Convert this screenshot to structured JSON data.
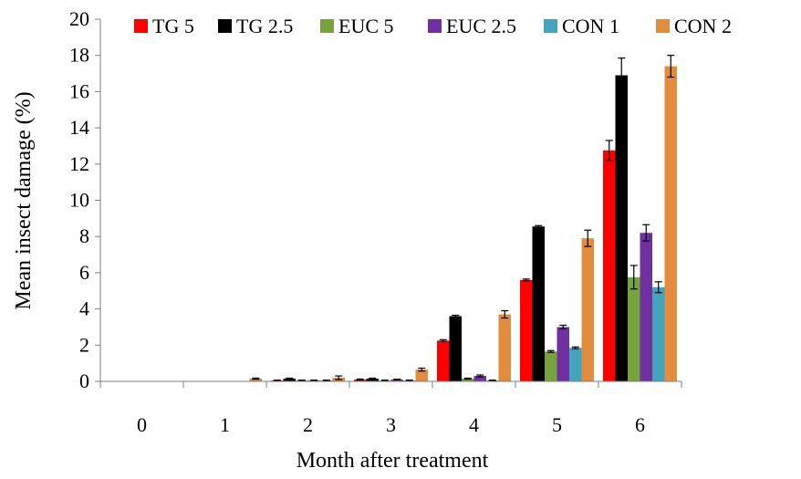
{
  "chart_data": {
    "type": "bar",
    "title": "",
    "xlabel": "Month after treatment",
    "ylabel": "Mean insect damage (%)",
    "ylim": [
      0,
      20
    ],
    "yticks": [
      0,
      2,
      4,
      6,
      8,
      10,
      12,
      14,
      16,
      18,
      20
    ],
    "grid": false,
    "legend_position": "top",
    "categories": [
      "0",
      "1",
      "2",
      "3",
      "4",
      "5",
      "6"
    ],
    "series": [
      {
        "name": "TG 5",
        "color": "#ff0000",
        "values": [
          0,
          0,
          0.05,
          0.1,
          2.25,
          5.6,
          12.75
        ],
        "errors": [
          0,
          0,
          0.02,
          0.03,
          0.05,
          0.05,
          0.55
        ]
      },
      {
        "name": "TG 2.5",
        "color": "#000000",
        "values": [
          0,
          0,
          0.15,
          0.15,
          3.6,
          8.55,
          16.9
        ],
        "errors": [
          0,
          0,
          0.03,
          0.03,
          0.05,
          0.05,
          0.95
        ]
      },
      {
        "name": "EUC 5",
        "color": "#77a33c",
        "values": [
          0,
          0,
          0.05,
          0.05,
          0.15,
          1.65,
          5.75
        ],
        "errors": [
          0,
          0,
          0.02,
          0.02,
          0.03,
          0.05,
          0.65
        ]
      },
      {
        "name": "EUC 2.5",
        "color": "#7030a0",
        "values": [
          0,
          0,
          0.05,
          0.1,
          0.3,
          3.0,
          8.2
        ],
        "errors": [
          0,
          0,
          0.02,
          0.02,
          0.05,
          0.1,
          0.45
        ]
      },
      {
        "name": "CON 1",
        "color": "#44a4bd",
        "values": [
          0,
          0,
          0.05,
          0.05,
          0.05,
          1.85,
          5.2
        ],
        "errors": [
          0,
          0,
          0.02,
          0.02,
          0.02,
          0.05,
          0.3
        ]
      },
      {
        "name": "CON 2",
        "color": "#e28c3e",
        "values": [
          0,
          0.15,
          0.2,
          0.65,
          3.7,
          7.9,
          17.4
        ],
        "errors": [
          0,
          0.03,
          0.1,
          0.08,
          0.2,
          0.45,
          0.6
        ]
      }
    ]
  }
}
